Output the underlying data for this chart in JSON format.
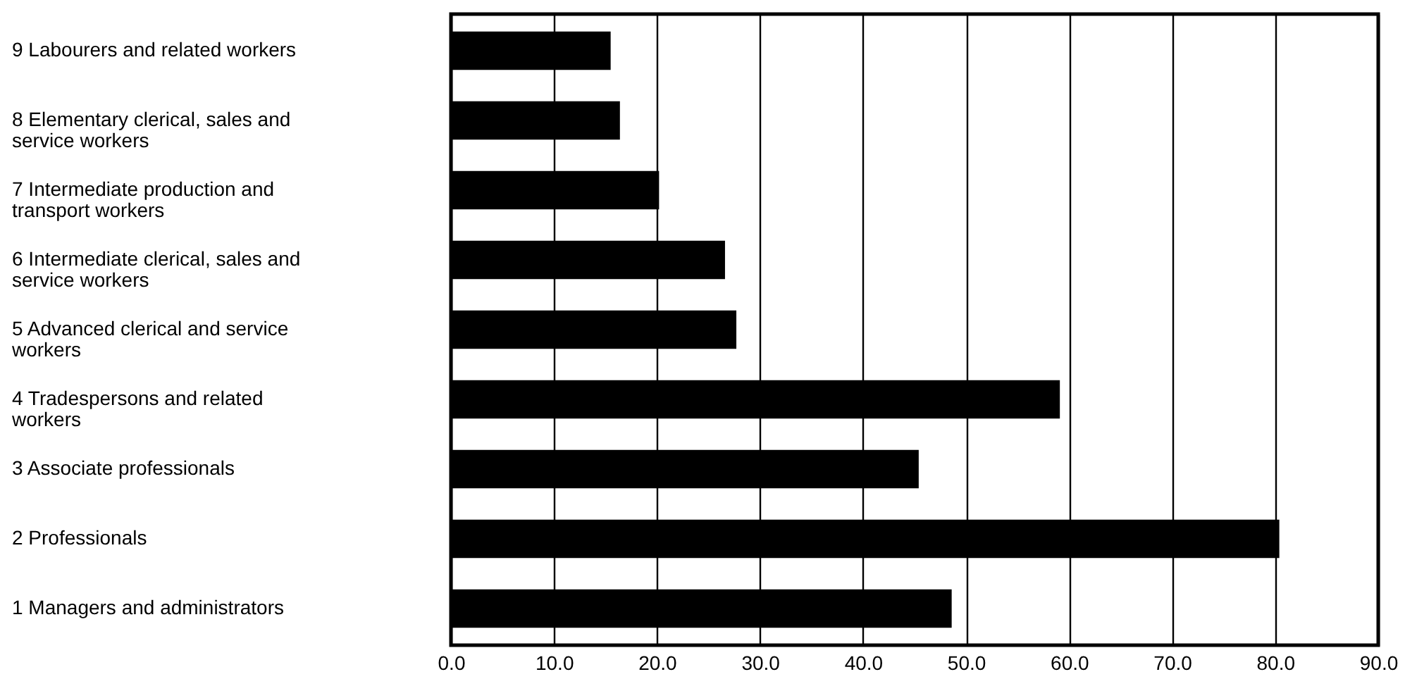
{
  "chart_data": {
    "type": "bar",
    "orientation": "horizontal",
    "categories": [
      "9 Labourers and related workers",
      "8 Elementary clerical, sales and service workers",
      "7 Intermediate production and transport workers",
      "6 Intermediate clerical, sales and service workers",
      "5 Advanced clerical and service workers",
      "4 Tradespersons and related workers",
      "3 Associate professionals",
      "2 Professionals",
      "1 Managers and administrators"
    ],
    "values": [
      15.5,
      16.4,
      20.2,
      26.6,
      27.7,
      59.1,
      45.4,
      80.4,
      48.6
    ],
    "color": "#000000",
    "xlim": [
      0,
      90
    ],
    "xticks": [
      {
        "value": 0,
        "label": "0.0"
      },
      {
        "value": 10,
        "label": "10.0"
      },
      {
        "value": 20,
        "label": "20.0"
      },
      {
        "value": 30,
        "label": "30.0"
      },
      {
        "value": 40,
        "label": "40.0"
      },
      {
        "value": 50,
        "label": "50.0"
      },
      {
        "value": 60,
        "label": "60.0"
      },
      {
        "value": 70,
        "label": "70.0"
      },
      {
        "value": 80,
        "label": "80.0"
      },
      {
        "value": 90,
        "label": "90.0"
      }
    ],
    "grid": "x"
  }
}
